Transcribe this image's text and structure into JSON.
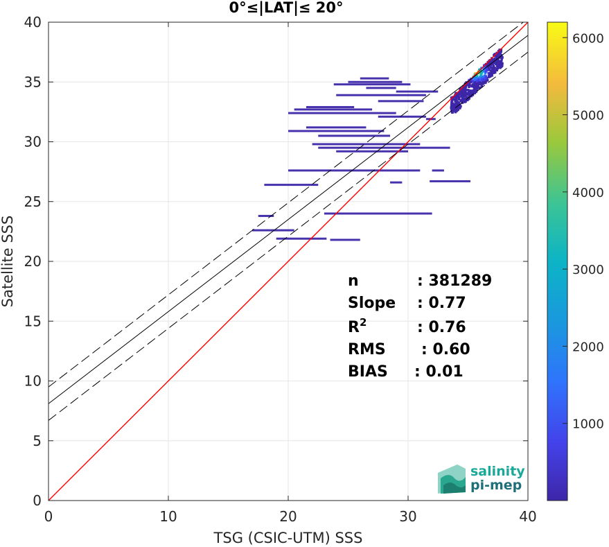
{
  "chart_data": {
    "type": "heatmap",
    "title": "0°≤|LAT|≤ 20°",
    "xlabel": "TSG (CSIC-UTM) SSS",
    "ylabel": "Satellite SSS",
    "xlim": [
      0,
      40
    ],
    "ylim": [
      0,
      40
    ],
    "xticks": [
      "0",
      "10",
      "20",
      "30",
      "40"
    ],
    "yticks": [
      "0",
      "5",
      "10",
      "15",
      "20",
      "25",
      "30",
      "35",
      "40"
    ],
    "grid": true,
    "colorbar": {
      "range": [
        0,
        6200
      ],
      "ticks": [
        "1000",
        "2000",
        "3000",
        "4000",
        "5000",
        "6000"
      ],
      "colormap": "parula"
    },
    "reference_lines": [
      {
        "name": "1:1",
        "color": "#ff0000",
        "slope": 1.0,
        "intercept": 0
      },
      {
        "name": "fit",
        "color": "#000000",
        "style": "solid",
        "slope": 0.77,
        "intercept": 8.1
      },
      {
        "name": "fit+",
        "color": "#000000",
        "style": "dashed",
        "slope": 0.77,
        "intercept": 9.5
      },
      {
        "name": "fit-",
        "color": "#000000",
        "style": "dashed",
        "slope": 0.77,
        "intercept": 6.7
      }
    ],
    "stats": [
      {
        "label": "n",
        "value": ": 381289"
      },
      {
        "label": "Slope",
        "value": ": 0.77"
      },
      {
        "label": "R",
        "sup": "2",
        "value": ": 0.76"
      },
      {
        "label": "RMS",
        "value": ": 0.60"
      },
      {
        "label": "BIAS",
        "value": ": 0.01"
      }
    ],
    "density_segments": [
      {
        "y": 35.3,
        "x0": 26.0,
        "x1": 28.4
      },
      {
        "y": 35.0,
        "x0": 25.0,
        "x1": 29.5
      },
      {
        "y": 34.8,
        "x0": 23.8,
        "x1": 30.2
      },
      {
        "y": 34.5,
        "x0": 26.5,
        "x1": 29.0
      },
      {
        "y": 34.2,
        "x0": 29.0,
        "x1": 32.5
      },
      {
        "y": 33.9,
        "x0": 24.0,
        "x1": 31.5
      },
      {
        "y": 33.4,
        "x0": 27.5,
        "x1": 31.3
      },
      {
        "y": 32.7,
        "x0": 20.5,
        "x1": 27.0
      },
      {
        "y": 32.9,
        "x0": 21.5,
        "x1": 25.5
      },
      {
        "y": 32.4,
        "x0": 20.0,
        "x1": 29.0
      },
      {
        "y": 32.1,
        "x0": 27.5,
        "x1": 31.5
      },
      {
        "y": 31.2,
        "x0": 21.5,
        "x1": 26.5
      },
      {
        "y": 30.9,
        "x0": 20.0,
        "x1": 28.0
      },
      {
        "y": 30.5,
        "x0": 22.5,
        "x1": 28.5
      },
      {
        "y": 29.8,
        "x0": 22.0,
        "x1": 31.0
      },
      {
        "y": 29.5,
        "x0": 22.5,
        "x1": 33.5
      },
      {
        "y": 29.2,
        "x0": 24.0,
        "x1": 30.0
      },
      {
        "y": 27.6,
        "x0": 20.0,
        "x1": 31.0
      },
      {
        "y": 27.6,
        "x0": 32.0,
        "x1": 33.0
      },
      {
        "y": 26.7,
        "x0": 31.8,
        "x1": 35.2
      },
      {
        "y": 26.6,
        "x0": 28.5,
        "x1": 29.5
      },
      {
        "y": 26.4,
        "x0": 18.0,
        "x1": 22.5
      },
      {
        "y": 24.0,
        "x0": 23.0,
        "x1": 32.0
      },
      {
        "y": 23.8,
        "x0": 17.5,
        "x1": 18.8
      },
      {
        "y": 22.6,
        "x0": 17.0,
        "x1": 20.5
      },
      {
        "y": 21.9,
        "x0": 19.0,
        "x1": 23.2
      },
      {
        "y": 21.8,
        "x0": 23.5,
        "x1": 26.0
      },
      {
        "y": 31.9,
        "x0": 31.5,
        "x1": 32.3
      }
    ],
    "dense_cluster": {
      "x_center": 35.6,
      "y_center": 35.9,
      "x_range": [
        33.5,
        37.8
      ],
      "y_range": [
        32.5,
        37.8
      ],
      "peak": 6200
    }
  },
  "logo": {
    "line1": "salinity",
    "line2": "pi-mep",
    "color": "#1aa898"
  }
}
